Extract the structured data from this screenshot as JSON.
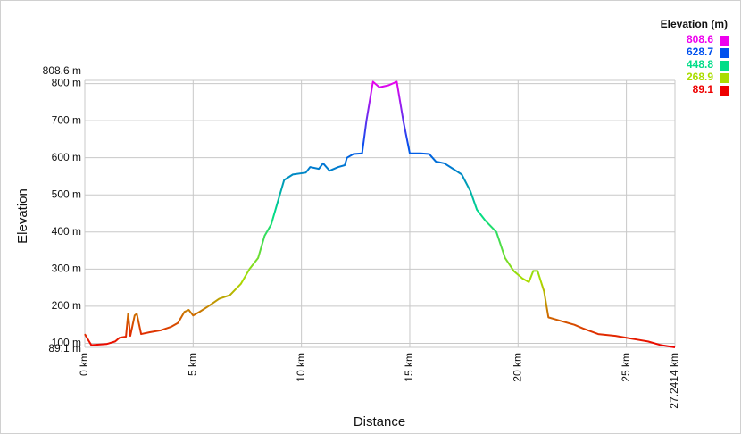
{
  "chart_data": {
    "type": "line",
    "x_label": "Distance",
    "y_label": "Elevation",
    "legend_title": "Elevation (m)",
    "color_scale": [
      {
        "value": 808.6,
        "color": "#ee00ee"
      },
      {
        "value": 628.7,
        "color": "#0050ee"
      },
      {
        "value": 448.8,
        "color": "#00dd88"
      },
      {
        "value": 268.9,
        "color": "#aadd00"
      },
      {
        "value": 89.1,
        "color": "#ee0000"
      }
    ],
    "grid": true,
    "xlim": [
      0,
      27.2414
    ],
    "ylim": [
      89.1,
      808.6
    ],
    "xticks": [
      {
        "value": 0,
        "label": "0 km"
      },
      {
        "value": 5,
        "label": "5 km"
      },
      {
        "value": 10,
        "label": "10 km"
      },
      {
        "value": 15,
        "label": "15 km"
      },
      {
        "value": 20,
        "label": "20 km"
      },
      {
        "value": 25,
        "label": "25 km"
      },
      {
        "value": 27.2414,
        "label": "27.2414 km"
      }
    ],
    "yticks": [
      {
        "value": 89.1,
        "label": "89.1 m"
      },
      {
        "value": 100,
        "label": "100 m"
      },
      {
        "value": 200,
        "label": "200 m"
      },
      {
        "value": 300,
        "label": "300 m"
      },
      {
        "value": 400,
        "label": "400 m"
      },
      {
        "value": 500,
        "label": "500 m"
      },
      {
        "value": 600,
        "label": "600 m"
      },
      {
        "value": 700,
        "label": "700 m"
      },
      {
        "value": 800,
        "label": "800 m"
      },
      {
        "value": 808.6,
        "label": "808.6 m"
      }
    ],
    "x": [
      0,
      0.3,
      1,
      1.4,
      1.6,
      1.9,
      2.0,
      2.1,
      2.3,
      2.4,
      2.6,
      3,
      3.5,
      4,
      4.3,
      4.6,
      4.8,
      5.0,
      5.3,
      5.7,
      6.2,
      6.7,
      7.2,
      7.6,
      8.0,
      8.3,
      8.6,
      8.9,
      9.2,
      9.6,
      10.2,
      10.4,
      10.8,
      11,
      11.3,
      11.7,
      12,
      12.1,
      12.4,
      12.8,
      13.0,
      13.3,
      13.6,
      14.0,
      14.4,
      14.7,
      15,
      15.5,
      15.9,
      16.2,
      16.6,
      17.0,
      17.4,
      17.8,
      18.1,
      18.5,
      19.0,
      19.4,
      19.8,
      20.2,
      20.5,
      20.7,
      20.9,
      21.2,
      21.4,
      22,
      22.6,
      23,
      23.7,
      24.5,
      25,
      25.5,
      26,
      26.6,
      27.2414
    ],
    "values": [
      125,
      95,
      98,
      105,
      115,
      118,
      180,
      120,
      175,
      180,
      125,
      130,
      135,
      145,
      155,
      185,
      190,
      175,
      185,
      200,
      220,
      230,
      260,
      300,
      330,
      390,
      420,
      480,
      540,
      555,
      560,
      575,
      570,
      585,
      565,
      575,
      580,
      600,
      610,
      612,
      700,
      805,
      790,
      795,
      805,
      700,
      612,
      612,
      610,
      590,
      585,
      570,
      555,
      510,
      460,
      430,
      400,
      330,
      295,
      275,
      265,
      295,
      295,
      240,
      170,
      160,
      150,
      140,
      125,
      120,
      115,
      110,
      105,
      95,
      89.1
    ]
  }
}
